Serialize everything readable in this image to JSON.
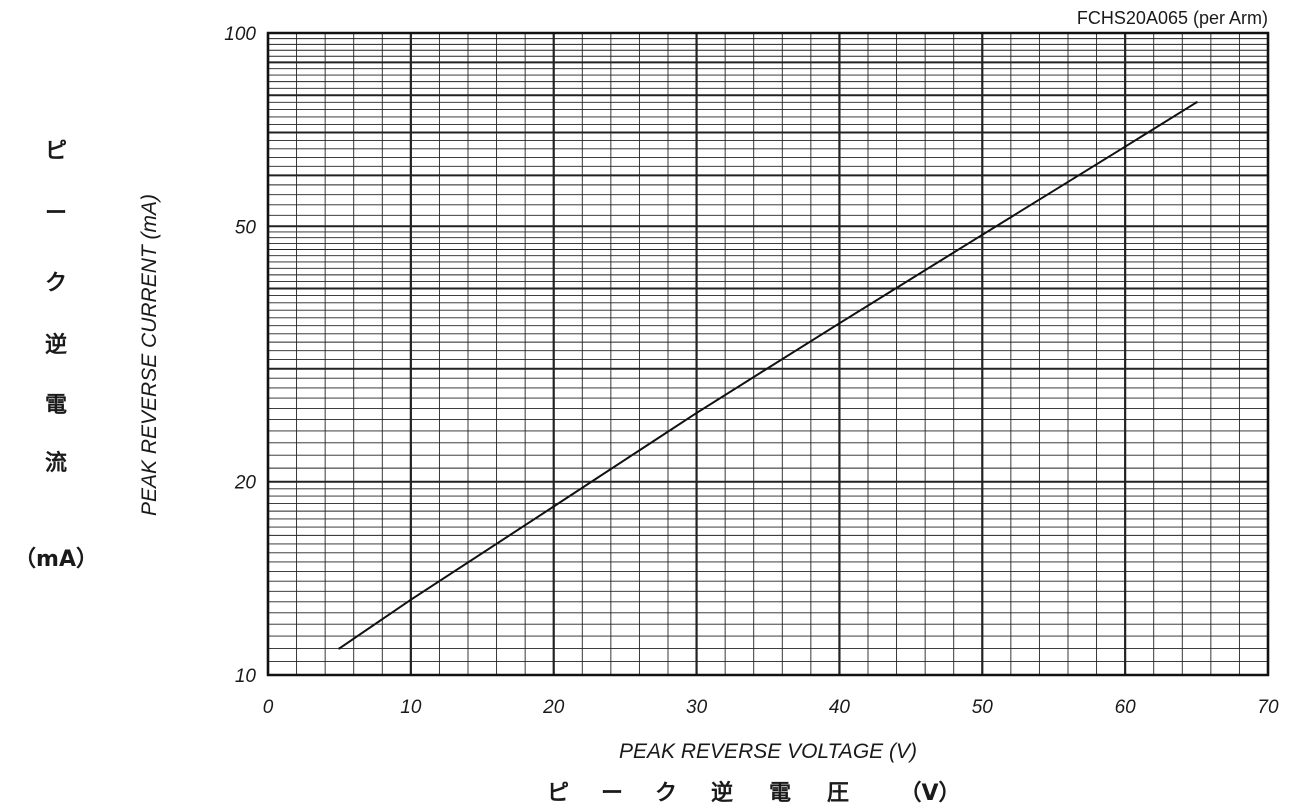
{
  "chart_data": {
    "type": "line",
    "title": "FCHS20A065 (per Arm)",
    "xlabel": "PEAK REVERSE VOLTAGE (V)",
    "xlabel_jp": [
      "ピ",
      "ー",
      "ク",
      "逆",
      "電",
      "圧",
      "（V）"
    ],
    "ylabel": "PEAK REVERSE CURRENT (mA)",
    "ylabel_jp": [
      "ピ",
      "ー",
      "ク",
      "逆",
      "電",
      "流",
      "（mA）"
    ],
    "xlim": [
      0,
      70
    ],
    "ylim": [
      10,
      100
    ],
    "yscale": "log",
    "grid": true,
    "x_tick_labels": [
      "0",
      "10",
      "20",
      "30",
      "40",
      "50",
      "60",
      "70"
    ],
    "x_ticks": [
      0,
      10,
      20,
      30,
      40,
      50,
      60,
      70
    ],
    "y_tick_labels": [
      "10",
      "20",
      "50",
      "100"
    ],
    "y_ticks": [
      10,
      20,
      50,
      100
    ],
    "series": [
      {
        "x": [
          5,
          10,
          20,
          30,
          40,
          50,
          60,
          65
        ],
        "values": [
          11.0,
          13.1,
          18.3,
          25.6,
          35.3,
          48.5,
          66.5,
          78.0
        ]
      }
    ]
  }
}
